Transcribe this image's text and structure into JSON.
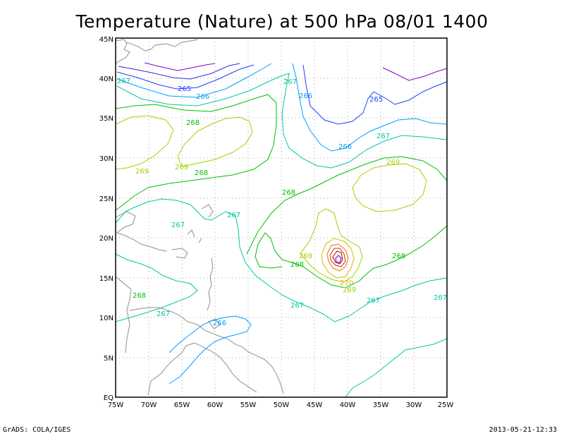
{
  "title": "Temperature (Nature) at 500 hPa 08/01 1400",
  "footer_left": "GrADS: COLA/IGES",
  "footer_right": "2013-05-21-12:33",
  "lon_ticks": [
    "75W",
    "70W",
    "65W",
    "60W",
    "55W",
    "50W",
    "45W",
    "40W",
    "35W",
    "30W",
    "25W"
  ],
  "lat_ticks": [
    "EQ",
    "5N",
    "10N",
    "15N",
    "20N",
    "25N",
    "30N",
    "35N",
    "40N",
    "45N"
  ],
  "contour_colors": {
    "265": "#1e3cff",
    "266": "#00a0ff",
    "267": "#00c8a0",
    "268": "#00c000",
    "269": "#a0d200",
    "270": "#e6b400",
    "271": "#e07a00",
    "272": "#d82a00",
    "273": "#a00000",
    "263": "#8c00c8",
    "264": "#3c28d8"
  },
  "contour_labels": [
    {
      "text": "265"
    },
    {
      "text": "266"
    },
    {
      "text": "267"
    },
    {
      "text": "268"
    },
    {
      "text": "269"
    },
    {
      "text": "267"
    },
    {
      "text": "266"
    },
    {
      "text": "265"
    },
    {
      "text": "267"
    },
    {
      "text": "266"
    },
    {
      "text": "269"
    },
    {
      "text": "269"
    },
    {
      "text": "268"
    },
    {
      "text": "269"
    },
    {
      "text": "268"
    },
    {
      "text": "267"
    },
    {
      "text": "267"
    },
    {
      "text": "268"
    },
    {
      "text": "269"
    },
    {
      "text": "268"
    },
    {
      "text": "270"
    },
    {
      "text": "269"
    },
    {
      "text": "267"
    },
    {
      "text": "267"
    },
    {
      "text": "268"
    },
    {
      "text": "267"
    },
    {
      "text": "266"
    },
    {
      "text": "268"
    },
    {
      "text": "267"
    }
  ]
}
